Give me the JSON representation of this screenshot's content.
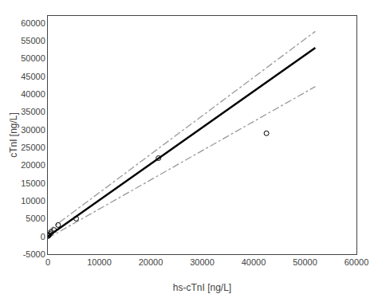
{
  "chart_data": {
    "type": "scatter",
    "xlabel": "hs-cTnI [ng/L]",
    "ylabel": "cTnI [ng/L]",
    "xlim": [
      0,
      60000
    ],
    "ylim": [
      -5000,
      62000
    ],
    "xticks": [
      0,
      10000,
      20000,
      30000,
      40000,
      50000,
      60000
    ],
    "yticks": [
      -5000,
      0,
      5000,
      10000,
      15000,
      20000,
      25000,
      30000,
      35000,
      40000,
      45000,
      50000,
      55000,
      60000
    ],
    "grid": false,
    "series": [
      {
        "type": "line",
        "color": "#000000",
        "line_style": "solid",
        "x": [
          0,
          52000
        ],
        "values": [
          0,
          53040
        ]
      },
      {
        "type": "line",
        "color": "#999999",
        "line_style": "dashdot",
        "x": [
          0,
          52000
        ],
        "values": [
          1500,
          57660
        ]
      },
      {
        "type": "line",
        "color": "#999999",
        "line_style": "dashdot",
        "x": [
          0,
          52000
        ],
        "values": [
          -500,
          42140
        ]
      },
      {
        "type": "scatter",
        "color": "#000000",
        "marker": "open circle",
        "x": [
          50,
          100,
          200,
          400,
          700,
          1200,
          2000,
          5500,
          21500,
          42500
        ],
        "values": [
          100,
          200,
          400,
          700,
          1200,
          1800,
          3200,
          5000,
          22000,
          29000
        ]
      }
    ]
  }
}
